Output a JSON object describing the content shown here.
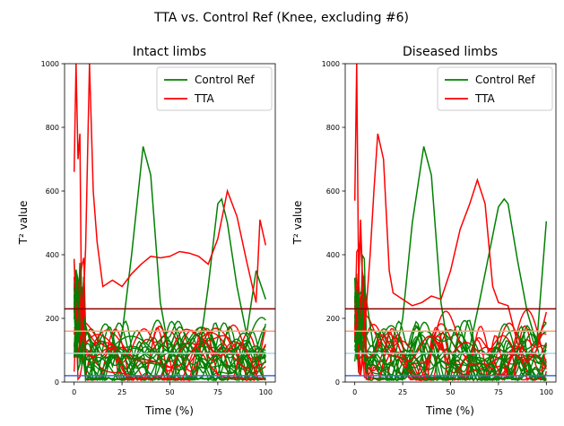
{
  "figure": {
    "title": "TTA vs. Control Ref (Knee, excluding #6)"
  },
  "colors": {
    "control": "#008000",
    "tta": "#ff0000",
    "h_dark_red": "#8b0000",
    "h_light_salmon": "#ffa07a",
    "h_light_blue": "#add8e6",
    "h_royal_blue": "#4169e1"
  },
  "chart_data": [
    {
      "type": "line",
      "title": "Intact limbs",
      "xlabel": "Time  (%)",
      "ylabel": "T² value",
      "xlim": [
        -5,
        105
      ],
      "ylim": [
        0,
        1000
      ],
      "xticks": [
        "0",
        "25",
        "50",
        "75",
        "100"
      ],
      "yticks": [
        "0",
        "200",
        "400",
        "600",
        "800",
        "1000"
      ],
      "legend": {
        "position": "top-right",
        "entries": [
          "Control Ref",
          "TTA"
        ]
      },
      "hlines": [
        230,
        160,
        90,
        20
      ],
      "series": [
        {
          "name": "Control Ref",
          "values": [
            [
              0,
              80
            ],
            [
              5,
              200
            ],
            [
              10,
              90
            ],
            [
              15,
              150
            ],
            [
              20,
              50
            ],
            [
              25,
              150
            ],
            [
              30,
              400
            ],
            [
              36,
              740
            ],
            [
              40,
              650
            ],
            [
              45,
              250
            ],
            [
              50,
              80
            ],
            [
              55,
              140
            ],
            [
              60,
              100
            ],
            [
              65,
              80
            ],
            [
              70,
              300
            ],
            [
              75,
              560
            ],
            [
              77,
              575
            ],
            [
              80,
              500
            ],
            [
              85,
              300
            ],
            [
              90,
              150
            ],
            [
              95,
              350
            ],
            [
              100,
              260
            ]
          ]
        },
        {
          "name": "TTA",
          "values": [
            [
              0,
              660
            ],
            [
              1,
              1000
            ],
            [
              2,
              700
            ],
            [
              3,
              780
            ],
            [
              4,
              150
            ],
            [
              6,
              420
            ],
            [
              8,
              1000
            ],
            [
              10,
              600
            ],
            [
              12,
              440
            ],
            [
              15,
              300
            ],
            [
              20,
              320
            ],
            [
              25,
              300
            ],
            [
              30,
              340
            ],
            [
              35,
              370
            ],
            [
              40,
              395
            ],
            [
              45,
              390
            ],
            [
              50,
              395
            ],
            [
              55,
              410
            ],
            [
              60,
              405
            ],
            [
              65,
              395
            ],
            [
              70,
              370
            ],
            [
              75,
              450
            ],
            [
              80,
              600
            ],
            [
              85,
              520
            ],
            [
              90,
              380
            ],
            [
              95,
              250
            ],
            [
              97,
              510
            ],
            [
              100,
              430
            ]
          ]
        }
      ]
    },
    {
      "type": "line",
      "title": "Diseased limbs",
      "xlabel": "Time  (%)",
      "ylabel": "T² value",
      "xlim": [
        -5,
        105
      ],
      "ylim": [
        0,
        1000
      ],
      "xticks": [
        "0",
        "25",
        "50",
        "75",
        "100"
      ],
      "yticks": [
        "0",
        "200",
        "400",
        "600",
        "800",
        "1000"
      ],
      "legend": {
        "position": "top-right",
        "entries": [
          "Control Ref",
          "TTA"
        ]
      },
      "hlines": [
        230,
        160,
        90,
        20
      ],
      "series": [
        {
          "name": "Control Ref",
          "values": [
            [
              0,
              250
            ],
            [
              5,
              300
            ],
            [
              10,
              100
            ],
            [
              15,
              60
            ],
            [
              20,
              50
            ],
            [
              25,
              200
            ],
            [
              30,
              500
            ],
            [
              36,
              740
            ],
            [
              40,
              650
            ],
            [
              45,
              250
            ],
            [
              50,
              60
            ],
            [
              55,
              90
            ],
            [
              60,
              110
            ],
            [
              65,
              250
            ],
            [
              70,
              400
            ],
            [
              75,
              550
            ],
            [
              78,
              575
            ],
            [
              80,
              560
            ],
            [
              85,
              380
            ],
            [
              90,
              220
            ],
            [
              95,
              120
            ],
            [
              100,
              505
            ]
          ]
        },
        {
          "name": "TTA",
          "values": [
            [
              0,
              570
            ],
            [
              1,
              1000
            ],
            [
              2,
              300
            ],
            [
              3,
              510
            ],
            [
              5,
              150
            ],
            [
              8,
              400
            ],
            [
              10,
              600
            ],
            [
              12,
              780
            ],
            [
              15,
              700
            ],
            [
              18,
              350
            ],
            [
              20,
              280
            ],
            [
              25,
              260
            ],
            [
              30,
              240
            ],
            [
              35,
              250
            ],
            [
              40,
              270
            ],
            [
              45,
              260
            ],
            [
              50,
              350
            ],
            [
              55,
              480
            ],
            [
              60,
              560
            ],
            [
              64,
              635
            ],
            [
              68,
              560
            ],
            [
              72,
              300
            ],
            [
              75,
              250
            ],
            [
              80,
              240
            ],
            [
              85,
              120
            ],
            [
              90,
              60
            ],
            [
              95,
              100
            ],
            [
              100,
              220
            ]
          ]
        }
      ]
    }
  ]
}
